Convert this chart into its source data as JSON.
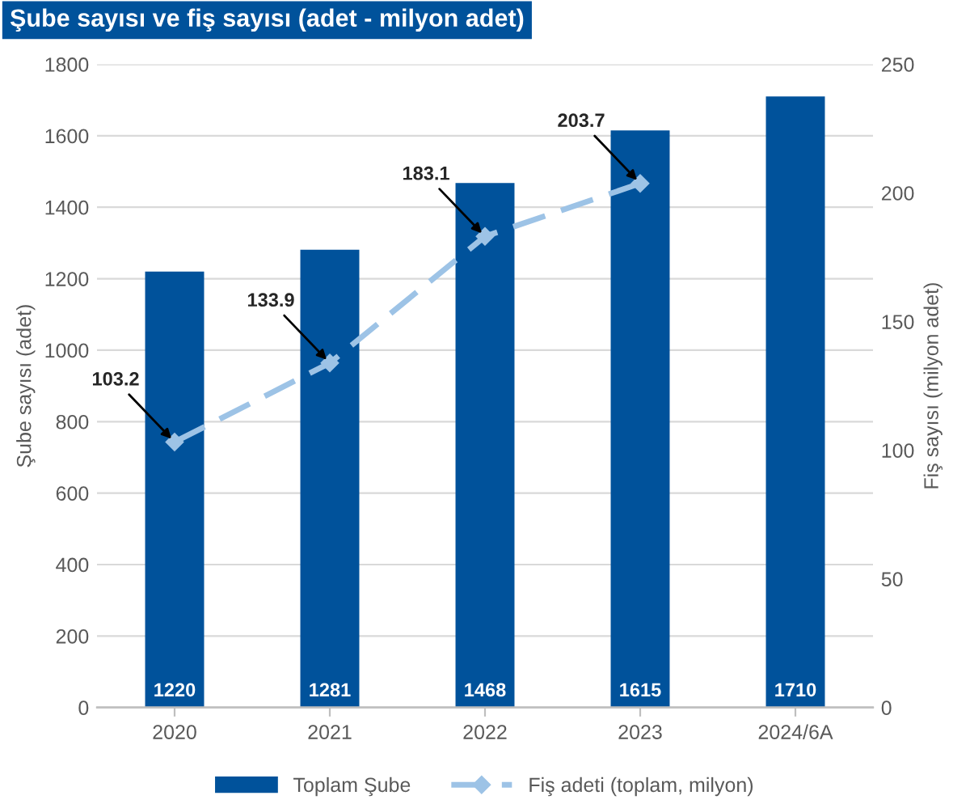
{
  "chart_data": {
    "type": "bar",
    "title": "Şube sayısı ve fiş sayısı (adet - milyon adet)",
    "ylabel": "Şube sayısı (adet)",
    "y2label": "Fiş sayısı (milyon adet)",
    "categories": [
      "2020",
      "2021",
      "2022",
      "2023",
      "2024/6A"
    ],
    "series": [
      {
        "name": "Toplam Şube",
        "color": "#00529b",
        "values": [
          1220,
          1281,
          1468,
          1615,
          1710
        ],
        "data_labels": true
      },
      {
        "name": "Fiş adeti (toplam, milyon)",
        "type": "line",
        "axis": "y2",
        "color": "#9dc3e6",
        "marker": "diamond",
        "line_style": "dashed",
        "values": [
          103.2,
          133.9,
          183.1,
          203.7,
          null
        ],
        "value_labels": [
          "103.2",
          "133.9",
          "183.1",
          "203.7",
          null
        ]
      }
    ],
    "ylim": [
      0,
      1800
    ],
    "yticks": [
      0,
      200,
      400,
      600,
      800,
      1000,
      1200,
      1400,
      1600,
      1800
    ],
    "y2lim": [
      0,
      250
    ],
    "y2ticks": [
      0,
      50,
      100,
      150,
      200,
      250
    ],
    "grid": "y",
    "legend": "bottom"
  }
}
